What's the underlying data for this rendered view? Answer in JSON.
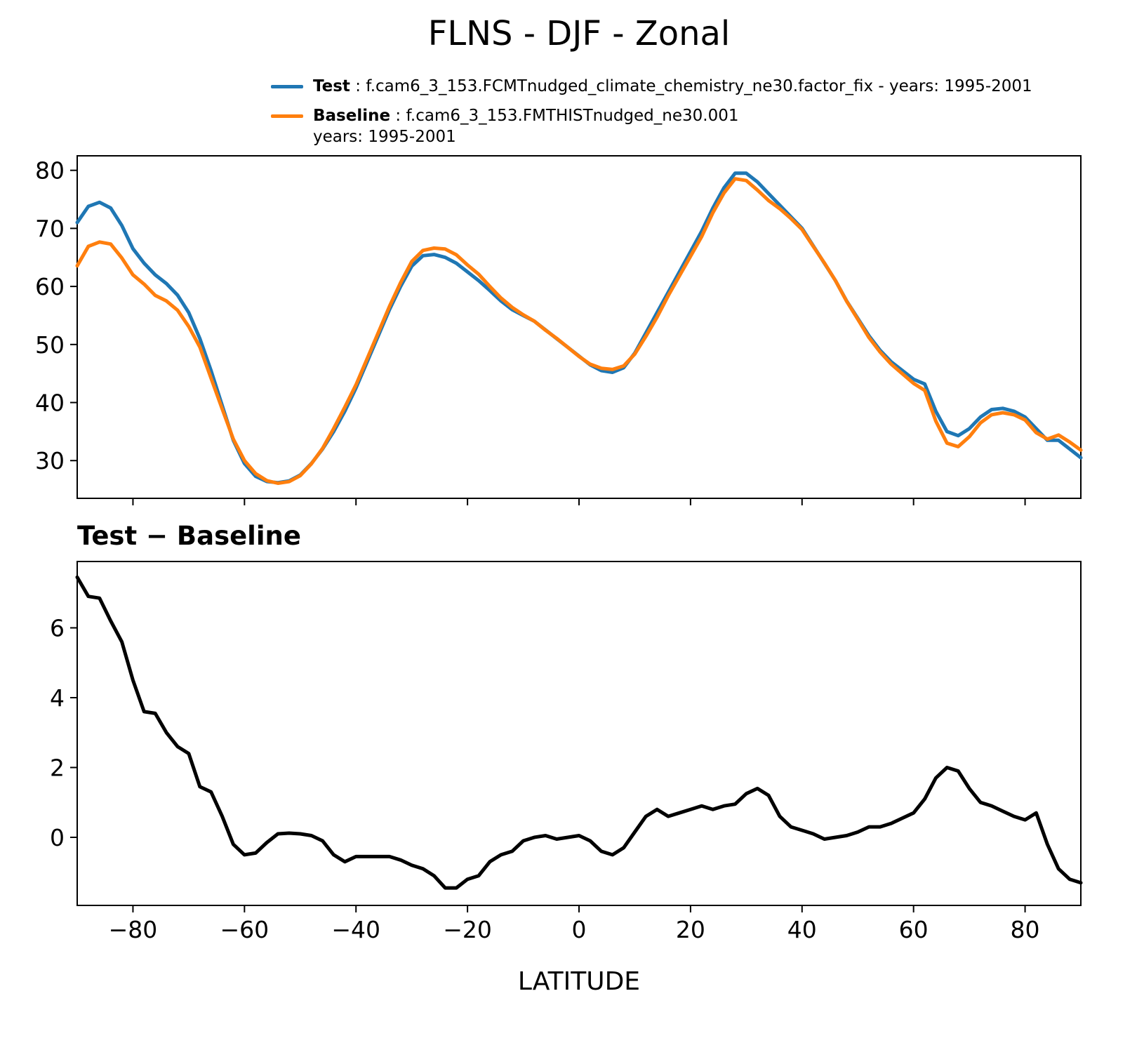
{
  "title": "FLNS - DJF - Zonal",
  "diff_title": "Test − Baseline",
  "legend": {
    "items": [
      {
        "name": "Test",
        "desc": " : f.cam6_3_153.FCMTnudged_climate_chemistry_ne30.factor_fix - years: 1995-2001",
        "color": "#1f77b4"
      },
      {
        "name": "Baseline",
        "desc": " : f.cam6_3_153.FMTHISTnudged_ne30.001",
        "desc2": "years: 1995-2001",
        "color": "#ff7f0e"
      }
    ]
  },
  "chart_data": [
    {
      "type": "line",
      "title": "FLNS - DJF - Zonal",
      "xlabel": "",
      "ylabel": "",
      "xlim": [
        -90,
        90
      ],
      "ylim": [
        23.5,
        82.5
      ],
      "grid": false,
      "legend_position": "top",
      "xticks": [
        -80,
        -60,
        -40,
        -20,
        0,
        20,
        40,
        60,
        80
      ],
      "xtick_labels": [],
      "yticks": [
        30,
        40,
        50,
        60,
        70,
        80
      ],
      "ytick_labels": [
        "30",
        "40",
        "50",
        "60",
        "70",
        "80"
      ],
      "x": [
        -90,
        -88,
        -86,
        -84,
        -82,
        -80,
        -78,
        -76,
        -74,
        -72,
        -70,
        -68,
        -66,
        -64,
        -62,
        -60,
        -58,
        -56,
        -54,
        -52,
        -50,
        -48,
        -46,
        -44,
        -42,
        -40,
        -38,
        -36,
        -34,
        -32,
        -30,
        -28,
        -26,
        -24,
        -22,
        -20,
        -18,
        -16,
        -14,
        -12,
        -10,
        -8,
        -6,
        -4,
        -2,
        0,
        2,
        4,
        6,
        8,
        10,
        12,
        14,
        16,
        18,
        20,
        22,
        24,
        26,
        28,
        30,
        32,
        34,
        36,
        38,
        40,
        42,
        44,
        46,
        48,
        50,
        52,
        54,
        56,
        58,
        60,
        62,
        64,
        66,
        68,
        70,
        72,
        74,
        76,
        78,
        80,
        82,
        84,
        86,
        88,
        90
      ],
      "series": [
        {
          "name": "Test",
          "color": "#1f77b4",
          "values": [
            71.0,
            73.8,
            74.5,
            73.5,
            70.5,
            66.5,
            64.0,
            62.0,
            60.5,
            58.5,
            55.5,
            51.0,
            45.5,
            39.5,
            33.5,
            29.5,
            27.3,
            26.4,
            26.2,
            26.5,
            27.5,
            29.5,
            32.0,
            35.0,
            38.5,
            42.5,
            47.0,
            51.5,
            56.0,
            60.0,
            63.5,
            65.3,
            65.5,
            65.0,
            64.0,
            62.5,
            61.0,
            59.3,
            57.5,
            56.0,
            55.0,
            54.0,
            52.5,
            51.0,
            49.5,
            48.0,
            46.5,
            45.5,
            45.2,
            46.0,
            48.5,
            52.0,
            55.5,
            59.0,
            62.5,
            66.0,
            69.5,
            73.5,
            77.0,
            79.5,
            79.5,
            78.0,
            76.0,
            74.0,
            72.0,
            70.0,
            67.0,
            64.0,
            61.0,
            57.5,
            54.5,
            51.5,
            49.0,
            47.0,
            45.5,
            44.0,
            43.2,
            38.5,
            35.0,
            34.3,
            35.5,
            37.5,
            38.8,
            39.0,
            38.5,
            37.5,
            35.5,
            33.5,
            33.5,
            32.0,
            30.5
          ]
        },
        {
          "name": "Baseline",
          "color": "#ff7f0e",
          "values": [
            63.55,
            66.9,
            67.65,
            67.3,
            64.9,
            62.0,
            60.4,
            58.45,
            57.5,
            55.9,
            53.1,
            49.55,
            44.2,
            38.9,
            33.7,
            30.0,
            27.75,
            26.55,
            26.1,
            26.38,
            27.4,
            29.45,
            32.1,
            35.5,
            39.2,
            43.05,
            47.55,
            52.05,
            56.55,
            60.65,
            64.3,
            66.2,
            66.6,
            66.45,
            65.45,
            63.7,
            62.1,
            60.0,
            58.0,
            56.4,
            55.1,
            54.0,
            52.45,
            51.05,
            49.5,
            47.95,
            46.6,
            45.9,
            45.7,
            46.3,
            48.35,
            51.4,
            54.7,
            58.4,
            61.8,
            65.2,
            68.6,
            72.7,
            76.1,
            78.55,
            78.25,
            76.6,
            74.8,
            73.4,
            71.7,
            69.8,
            66.9,
            64.05,
            61.0,
            57.45,
            54.35,
            51.2,
            48.7,
            46.6,
            44.95,
            43.3,
            42.1,
            36.8,
            33.0,
            32.4,
            34.1,
            36.5,
            37.9,
            38.25,
            37.9,
            37.0,
            34.8,
            33.7,
            34.4,
            33.2,
            31.8
          ]
        }
      ]
    },
    {
      "type": "line",
      "title": "Test − Baseline",
      "xlabel": "LATITUDE",
      "ylabel": "",
      "xlim": [
        -90,
        90
      ],
      "ylim": [
        -1.95,
        7.9
      ],
      "grid": false,
      "xticks": [
        -80,
        -60,
        -40,
        -20,
        0,
        20,
        40,
        60,
        80
      ],
      "xtick_labels": [
        "−80",
        "−60",
        "−40",
        "−20",
        "0",
        "20",
        "40",
        "60",
        "80"
      ],
      "yticks": [
        0,
        2,
        4,
        6
      ],
      "ytick_labels": [
        "0",
        "2",
        "4",
        "6"
      ],
      "x": [
        -90,
        -88,
        -86,
        -84,
        -82,
        -80,
        -78,
        -76,
        -74,
        -72,
        -70,
        -68,
        -66,
        -64,
        -62,
        -60,
        -58,
        -56,
        -54,
        -52,
        -50,
        -48,
        -46,
        -44,
        -42,
        -40,
        -38,
        -36,
        -34,
        -32,
        -30,
        -28,
        -26,
        -24,
        -22,
        -20,
        -18,
        -16,
        -14,
        -12,
        -10,
        -8,
        -6,
        -4,
        -2,
        0,
        2,
        4,
        6,
        8,
        10,
        12,
        14,
        16,
        18,
        20,
        22,
        24,
        26,
        28,
        30,
        32,
        34,
        36,
        38,
        40,
        42,
        44,
        46,
        48,
        50,
        52,
        54,
        56,
        58,
        60,
        62,
        64,
        66,
        68,
        70,
        72,
        74,
        76,
        78,
        80,
        82,
        84,
        86,
        88,
        90
      ],
      "series": [
        {
          "name": "Test - Baseline",
          "color": "#000000",
          "values": [
            7.45,
            6.9,
            6.85,
            6.2,
            5.6,
            4.5,
            3.6,
            3.55,
            3.0,
            2.6,
            2.4,
            1.45,
            1.3,
            0.6,
            -0.2,
            -0.5,
            -0.45,
            -0.15,
            0.1,
            0.12,
            0.1,
            0.05,
            -0.1,
            -0.5,
            -0.7,
            -0.55,
            -0.55,
            -0.55,
            -0.55,
            -0.65,
            -0.8,
            -0.9,
            -1.1,
            -1.45,
            -1.45,
            -1.2,
            -1.1,
            -0.7,
            -0.5,
            -0.4,
            -0.1,
            0.0,
            0.05,
            -0.05,
            0.0,
            0.05,
            -0.1,
            -0.4,
            -0.5,
            -0.3,
            0.15,
            0.6,
            0.8,
            0.6,
            0.7,
            0.8,
            0.9,
            0.8,
            0.9,
            0.95,
            1.25,
            1.4,
            1.2,
            0.6,
            0.3,
            0.2,
            0.1,
            -0.05,
            0.0,
            0.05,
            0.15,
            0.3,
            0.3,
            0.4,
            0.55,
            0.7,
            1.1,
            1.7,
            2.0,
            1.9,
            1.4,
            1.0,
            0.9,
            0.75,
            0.6,
            0.5,
            0.7,
            -0.2,
            -0.9,
            -1.2,
            -1.3
          ]
        }
      ]
    }
  ]
}
